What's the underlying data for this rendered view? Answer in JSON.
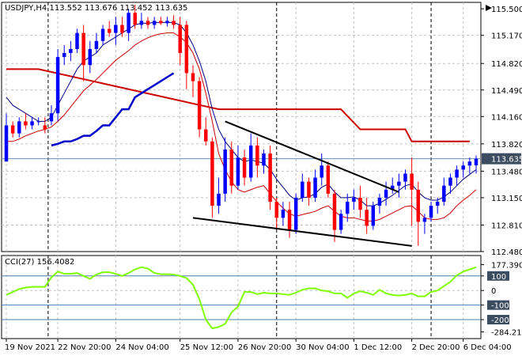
{
  "chart_data": [
    {
      "type": "candlestick",
      "symbol_line": "USDJPY,H4  113.552 113.676 113.452 113.635",
      "current_price": 113.635,
      "current_price_label": "113.635",
      "ylim": [
        112.48,
        115.58
      ],
      "y_ticks": [
        "115.500",
        "115.170",
        "114.820",
        "114.490",
        "114.160",
        "113.820",
        "113.480",
        "113.150",
        "112.810",
        "112.480"
      ],
      "x_ticks": [
        "19 Nov 2021",
        "22 Nov 20:00",
        "24 Nov 04:00",
        "25 Nov 12:00",
        "26 Nov 20:00",
        "30 Nov 04:00",
        "1 Dec 12:00",
        "2 Dec 20:00",
        "6 Dec 04:00"
      ],
      "grid": true,
      "candles": [
        [
          113.6,
          114.2,
          113.6,
          114.05
        ],
        [
          114.05,
          114.1,
          113.9,
          113.95
        ],
        [
          113.95,
          114.15,
          113.9,
          114.1
        ],
        [
          114.1,
          114.2,
          114.0,
          114.05
        ],
        [
          114.05,
          114.15,
          114.0,
          114.1
        ],
        [
          114.1,
          114.15,
          114.05,
          114.1
        ],
        [
          114.05,
          114.15,
          113.95,
          114.0
        ],
        [
          114.1,
          114.3,
          114.05,
          114.2
        ],
        [
          114.2,
          115.0,
          114.1,
          114.9
        ],
        [
          114.9,
          115.05,
          114.8,
          114.95
        ],
        [
          114.95,
          115.1,
          114.85,
          115.0
        ],
        [
          115.0,
          115.25,
          114.95,
          115.2
        ],
        [
          115.2,
          115.3,
          114.6,
          114.8
        ],
        [
          114.8,
          115.1,
          114.7,
          115.0
        ],
        [
          115.0,
          115.2,
          114.95,
          115.1
        ],
        [
          115.1,
          115.3,
          115.05,
          115.25
        ],
        [
          115.25,
          115.35,
          115.15,
          115.2
        ],
        [
          115.2,
          115.4,
          115.05,
          115.3
        ],
        [
          115.3,
          115.4,
          115.15,
          115.2
        ],
        [
          115.2,
          115.5,
          115.1,
          115.45
        ],
        [
          115.45,
          115.55,
          115.25,
          115.3
        ],
        [
          115.3,
          115.45,
          115.25,
          115.35
        ],
        [
          115.35,
          115.4,
          115.25,
          115.3
        ],
        [
          115.3,
          115.4,
          115.25,
          115.35
        ],
        [
          115.35,
          115.4,
          115.3,
          115.32
        ],
        [
          115.32,
          115.4,
          115.28,
          115.35
        ],
        [
          115.35,
          115.42,
          115.25,
          115.3
        ],
        [
          115.3,
          115.4,
          114.8,
          114.95
        ],
        [
          115.3,
          115.35,
          114.5,
          114.7
        ],
        [
          114.7,
          114.8,
          114.4,
          114.6
        ],
        [
          114.6,
          114.65,
          113.9,
          114.0
        ],
        [
          114.0,
          114.15,
          113.8,
          113.85
        ],
        [
          113.85,
          113.9,
          112.9,
          113.05
        ],
        [
          113.05,
          113.4,
          112.95,
          113.2
        ],
        [
          113.2,
          113.9,
          113.1,
          113.75
        ],
        [
          113.75,
          113.85,
          113.2,
          113.3
        ],
        [
          113.3,
          113.8,
          113.25,
          113.65
        ],
        [
          113.65,
          113.75,
          113.3,
          113.4
        ],
        [
          113.4,
          113.95,
          113.35,
          113.8
        ],
        [
          113.8,
          113.9,
          113.4,
          113.55
        ],
        [
          113.55,
          113.75,
          113.45,
          113.7
        ],
        [
          113.7,
          113.8,
          113.0,
          113.1
        ],
        [
          113.1,
          113.15,
          112.75,
          112.9
        ],
        [
          112.9,
          113.1,
          112.8,
          113.0
        ],
        [
          113.0,
          113.1,
          112.65,
          112.75
        ],
        [
          112.75,
          113.2,
          112.7,
          113.15
        ],
        [
          113.15,
          113.45,
          113.1,
          113.35
        ],
        [
          113.35,
          113.4,
          113.05,
          113.15
        ],
        [
          113.15,
          113.5,
          113.1,
          113.4
        ],
        [
          113.4,
          113.7,
          113.3,
          113.55
        ],
        [
          113.55,
          113.6,
          113.15,
          113.2
        ],
        [
          113.2,
          113.25,
          112.6,
          112.75
        ],
        [
          112.75,
          113.0,
          112.7,
          112.95
        ],
        [
          112.95,
          113.2,
          112.85,
          113.1
        ],
        [
          113.1,
          113.25,
          113.0,
          113.15
        ],
        [
          113.15,
          113.3,
          112.9,
          113.0
        ],
        [
          113.0,
          113.15,
          112.7,
          112.8
        ],
        [
          112.8,
          113.1,
          112.75,
          113.05
        ],
        [
          113.05,
          113.2,
          112.95,
          113.15
        ],
        [
          113.15,
          113.35,
          113.05,
          113.25
        ],
        [
          113.25,
          113.4,
          113.2,
          113.3
        ],
        [
          113.3,
          113.45,
          113.15,
          113.35
        ],
        [
          113.35,
          113.5,
          113.25,
          113.45
        ],
        [
          113.45,
          113.65,
          112.8,
          113.25
        ],
        [
          113.25,
          113.35,
          112.55,
          112.85
        ],
        [
          112.85,
          112.95,
          112.7,
          112.9
        ],
        [
          112.9,
          113.1,
          112.85,
          113.05
        ],
        [
          113.05,
          113.15,
          112.95,
          113.1
        ],
        [
          113.1,
          113.4,
          113.05,
          113.3
        ],
        [
          113.3,
          113.45,
          113.2,
          113.4
        ],
        [
          113.4,
          113.55,
          113.3,
          113.5
        ],
        [
          113.5,
          113.6,
          113.4,
          113.55
        ],
        [
          113.55,
          113.65,
          113.45,
          113.6
        ],
        [
          113.552,
          113.676,
          113.452,
          113.635
        ]
      ],
      "bull_color": "#0000ff",
      "bear_color": "#ff0000",
      "price_lines": [
        {
          "color": "#000080",
          "values": [
            114.4,
            114.3,
            114.25,
            114.2,
            114.15,
            114.1,
            114.1,
            114.15,
            114.3,
            114.45,
            114.6,
            114.75,
            114.85,
            114.9,
            114.95,
            115.05,
            115.1,
            115.15,
            115.2,
            115.25,
            115.3,
            115.32,
            115.32,
            115.33,
            115.33,
            115.33,
            115.33,
            115.3,
            115.2,
            115.05,
            114.85,
            114.6,
            114.25,
            114.0,
            113.85,
            113.75,
            113.65,
            113.6,
            113.62,
            113.6,
            113.58,
            113.5,
            113.38,
            113.28,
            113.18,
            113.12,
            113.15,
            113.16,
            113.2,
            113.28,
            113.32,
            113.22,
            113.15,
            113.15,
            113.16,
            113.12,
            113.05,
            113.05,
            113.08,
            113.13,
            113.18,
            113.24,
            113.3,
            113.32,
            113.22,
            113.15,
            113.12,
            113.12,
            113.16,
            113.22,
            113.3,
            113.38,
            113.44,
            113.5
          ]
        },
        {
          "color": "#cc0000",
          "values": [
            113.85,
            113.85,
            113.88,
            113.92,
            113.95,
            113.98,
            114.0,
            114.03,
            114.1,
            114.18,
            114.28,
            114.38,
            114.48,
            114.55,
            114.62,
            114.7,
            114.78,
            114.86,
            114.92,
            114.98,
            115.05,
            115.1,
            115.14,
            115.17,
            115.19,
            115.2,
            115.2,
            115.15,
            115.08,
            114.95,
            114.75,
            114.45,
            114.1,
            113.7,
            113.5,
            113.35,
            113.25,
            113.22,
            113.25,
            113.28,
            113.3,
            113.2,
            113.1,
            113.02,
            112.95,
            112.92,
            112.94,
            112.96,
            112.98,
            113.02,
            113.05,
            112.98,
            112.92,
            112.9,
            112.9,
            112.88,
            112.86,
            112.86,
            112.88,
            112.92,
            112.96,
            113.0,
            113.04,
            113.05,
            112.98,
            112.9,
            112.88,
            112.88,
            112.9,
            112.96,
            113.05,
            113.12,
            113.18,
            113.25
          ]
        },
        {
          "color": "#0000cc",
          "from_index": 7,
          "values": [
            113.8,
            113.82,
            113.85,
            113.85,
            113.88,
            113.92,
            113.92,
            113.98,
            114.05,
            114.05,
            114.15,
            114.25,
            114.25,
            114.4,
            114.45,
            114.5,
            114.55,
            114.6,
            114.65,
            114.7
          ]
        }
      ],
      "resistance_line": {
        "color": "#cc0000",
        "points": [
          [
            0,
            114.75
          ],
          [
            5,
            114.75
          ],
          [
            33,
            114.25
          ],
          [
            52,
            114.25
          ],
          [
            55,
            114.0
          ],
          [
            62,
            114.0
          ],
          [
            63,
            113.85
          ],
          [
            72,
            113.85
          ]
        ]
      },
      "trendlines": [
        {
          "color": "#000000",
          "from": [
            34,
            114.1
          ],
          "to": [
            61,
            113.22
          ]
        },
        {
          "color": "#000000",
          "from": [
            29,
            112.9
          ],
          "to": [
            63,
            112.55
          ]
        }
      ]
    },
    {
      "type": "line",
      "title": "CCI(27) 156.4082",
      "ylim": [
        -330,
        240
      ],
      "y_ticks": [
        "177.3903",
        "100",
        "0",
        "-100",
        "-200",
        "-284.2161"
      ],
      "levels": [
        100,
        -100,
        -200
      ],
      "line_color": "#7fff00",
      "values": [
        -30,
        -10,
        10,
        20,
        25,
        25,
        25,
        90,
        130,
        115,
        115,
        120,
        100,
        80,
        110,
        125,
        125,
        115,
        100,
        120,
        145,
        160,
        150,
        120,
        112,
        112,
        110,
        100,
        85,
        40,
        -60,
        -200,
        -260,
        -250,
        -230,
        -150,
        -110,
        -10,
        -10,
        -25,
        -15,
        -20,
        -20,
        -25,
        -30,
        -15,
        5,
        15,
        15,
        0,
        -5,
        -20,
        -20,
        -50,
        -20,
        -5,
        -15,
        -30,
        5,
        -20,
        -30,
        -35,
        -30,
        -20,
        -40,
        -40,
        -10,
        0,
        30,
        60,
        105,
        130,
        145,
        160
      ]
    }
  ]
}
